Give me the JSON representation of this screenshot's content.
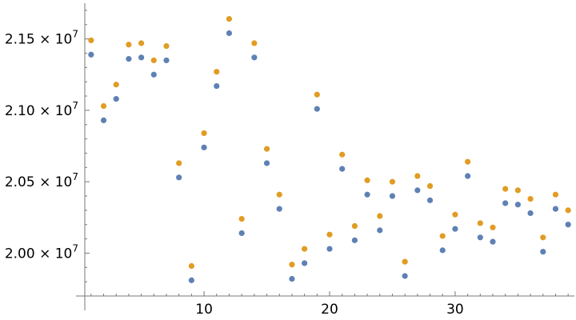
{
  "chart_data": {
    "type": "scatter",
    "title": "",
    "xlabel": "",
    "ylabel": "",
    "xlim": [
      0.5,
      39.5
    ],
    "ylim": [
      19700000,
      21750000
    ],
    "x_ticks": [
      10,
      20,
      30
    ],
    "x_tick_labels": [
      "10",
      "20",
      "30"
    ],
    "y_ticks": [
      20000000,
      20500000,
      21000000,
      21500000
    ],
    "y_tick_labels": [
      {
        "mantissa": "2.00",
        "times": "×",
        "base": "10",
        "exp": "7"
      },
      {
        "mantissa": "2.05",
        "times": "×",
        "base": "10",
        "exp": "7"
      },
      {
        "mantissa": "2.10",
        "times": "×",
        "base": "10",
        "exp": "7"
      },
      {
        "mantissa": "2.15",
        "times": "×",
        "base": "10",
        "exp": "7"
      }
    ],
    "x": [
      1,
      2,
      3,
      4,
      5,
      6,
      7,
      8,
      9,
      10,
      11,
      12,
      13,
      14,
      15,
      16,
      17,
      18,
      19,
      20,
      21,
      22,
      23,
      24,
      25,
      26,
      27,
      28,
      29,
      30,
      31,
      32,
      33,
      34,
      35,
      36,
      37,
      38,
      39
    ],
    "series": [
      {
        "color": "#5E81B5",
        "values": [
          21390000,
          20930000,
          21080000,
          21360000,
          21370000,
          21250000,
          21350000,
          20530000,
          19810000,
          20740000,
          21170000,
          21540000,
          20140000,
          21370000,
          20630000,
          20310000,
          19820000,
          19930000,
          21010000,
          20030000,
          20590000,
          20090000,
          20410000,
          20160000,
          20400000,
          19840000,
          20440000,
          20370000,
          20020000,
          20170000,
          20540000,
          20110000,
          20080000,
          20350000,
          20340000,
          20280000,
          20010000,
          20310000,
          20200000
        ]
      },
      {
        "color": "#E19C24",
        "values": [
          21490000,
          21030000,
          21180000,
          21460000,
          21470000,
          21350000,
          21450000,
          20630000,
          19910000,
          20840000,
          21270000,
          21640000,
          20240000,
          21470000,
          20730000,
          20410000,
          19920000,
          20030000,
          21110000,
          20130000,
          20690000,
          20190000,
          20510000,
          20260000,
          20500000,
          19940000,
          20540000,
          20470000,
          20120000,
          20270000,
          20640000,
          20210000,
          20180000,
          20450000,
          20440000,
          20380000,
          20110000,
          20410000,
          20300000
        ]
      }
    ],
    "grid": false,
    "legend": "none"
  }
}
